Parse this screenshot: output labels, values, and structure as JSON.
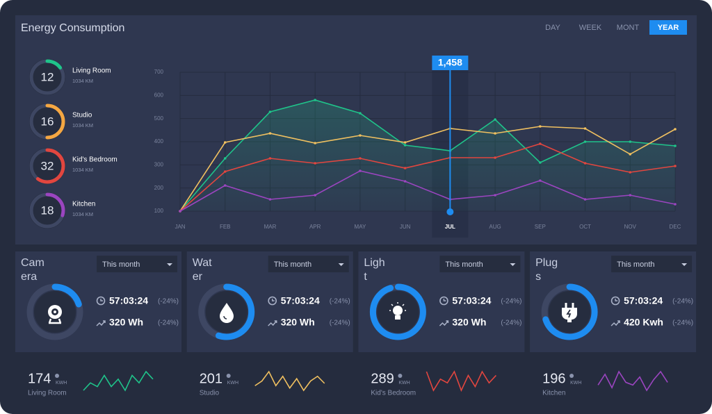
{
  "header": {
    "title": "Energy Consumption",
    "tabs": [
      "DAY",
      "WEEK",
      "MONT",
      "YEAR"
    ],
    "active_tab": 3
  },
  "rooms": [
    {
      "value": 12,
      "name": "Living Room",
      "detail": "1034 KM",
      "ring": 15,
      "color": "#1fc48a"
    },
    {
      "value": 16,
      "name": "Studio",
      "detail": "1034 KM",
      "ring": 50,
      "color": "#f5a742"
    },
    {
      "value": 32,
      "name": "Kid's Bedroom",
      "detail": "1034 KM",
      "ring": 60,
      "color": "#e2463f"
    },
    {
      "value": 18,
      "name": "Kitchen",
      "detail": "1034 KM",
      "ring": 30,
      "color": "#9b45c0"
    }
  ],
  "chart_data": {
    "type": "line",
    "categories": [
      "JAN",
      "FEB",
      "MAR",
      "APR",
      "MAY",
      "JUN",
      "JUL",
      "AUG",
      "SEP",
      "OCT",
      "NOV",
      "DEC"
    ],
    "series": [
      {
        "color": "#1fc48a",
        "values": [
          100,
          328,
          529,
          580,
          523,
          385,
          361,
          496,
          310,
          400,
          400,
          382
        ]
      },
      {
        "color": "#f0c060",
        "values": [
          100,
          397,
          436,
          394,
          427,
          397,
          457,
          436,
          466,
          457,
          346,
          454
        ]
      },
      {
        "color": "#e2463f",
        "values": [
          100,
          271,
          328,
          307,
          328,
          286,
          331,
          331,
          391,
          307,
          268,
          295
        ]
      },
      {
        "color": "#9b45c0",
        "values": [
          100,
          211,
          151,
          169,
          274,
          229,
          151,
          169,
          232,
          151,
          169,
          130
        ]
      }
    ],
    "ylim": [
      100,
      700
    ],
    "yticks": [
      100,
      200,
      300,
      400,
      500,
      600,
      700
    ],
    "grid": true,
    "highlight_index": 6,
    "highlight_label": "1,458"
  },
  "cards": [
    {
      "title": "Camera",
      "period": "This month",
      "time": "57:03:24",
      "time_change": "(-24%)",
      "energy": "320 Wh",
      "energy_change": "(-24%)",
      "ring": 20
    },
    {
      "title": "Water",
      "period": "This month",
      "time": "57:03:24",
      "time_change": "(-24%)",
      "energy": "320 Wh",
      "energy_change": "(-24%)",
      "ring": 55
    },
    {
      "title": "Light",
      "period": "This month",
      "time": "57:03:24",
      "time_change": "(-24%)",
      "energy": "320 Wh",
      "energy_change": "(-24%)",
      "ring": 95
    },
    {
      "title": "Plugs",
      "period": "This month",
      "time": "57:03:24",
      "time_change": "(-24%)",
      "energy": "420 Kwh",
      "energy_change": "(-24%)",
      "ring": 70
    }
  ],
  "stats": [
    {
      "value": 174,
      "unit": "KWH",
      "name": "Living Room",
      "color": "#1fc48a",
      "spark": [
        2,
        4,
        3,
        6,
        3,
        5,
        2,
        6,
        4,
        7,
        5
      ]
    },
    {
      "value": 201,
      "unit": "KWH",
      "name": "Studio",
      "color": "#f0c060",
      "spark": [
        3,
        5,
        9,
        3,
        7,
        2,
        6,
        1,
        5,
        7,
        4
      ]
    },
    {
      "value": 289,
      "unit": "KWH",
      "name": "Kid's Bedroom",
      "color": "#e2463f",
      "spark": [
        7,
        2,
        5,
        4,
        7,
        2,
        6,
        3,
        7,
        4,
        6
      ]
    },
    {
      "value": 196,
      "unit": "KWH",
      "name": "Kitchen",
      "color": "#9b45c0",
      "spark": [
        3,
        7,
        2,
        8,
        4,
        3,
        6,
        1,
        5,
        8,
        4
      ]
    }
  ]
}
